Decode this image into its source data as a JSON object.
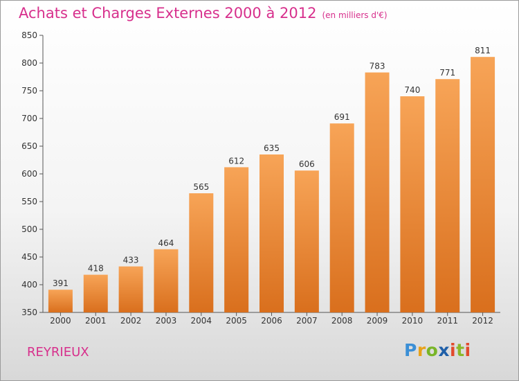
{
  "header": {
    "title": "Achats et Charges Externes 2000 à 2012",
    "unit": "(en milliers d'€)"
  },
  "footer": {
    "commune": "REYRIEUX",
    "logo": "Proxiti"
  },
  "colors": {
    "accent": "#d72f8c",
    "bar_light": "#f7a457",
    "bar_dark": "#d96f1d"
  },
  "chart_data": {
    "type": "bar",
    "title": "Achats et Charges Externes 2000 à 2012",
    "subtitle": "(en milliers d'€)",
    "xlabel": "",
    "ylabel": "",
    "categories": [
      "2000",
      "2001",
      "2002",
      "2003",
      "2004",
      "2005",
      "2006",
      "2007",
      "2008",
      "2009",
      "2010",
      "2011",
      "2012"
    ],
    "values": [
      391,
      418,
      433,
      464,
      565,
      612,
      635,
      606,
      691,
      783,
      740,
      771,
      811
    ],
    "ylim": [
      350,
      850
    ],
    "yticks": [
      350,
      400,
      450,
      500,
      550,
      600,
      650,
      700,
      750,
      800,
      850
    ],
    "grid": false,
    "legend": "none"
  }
}
